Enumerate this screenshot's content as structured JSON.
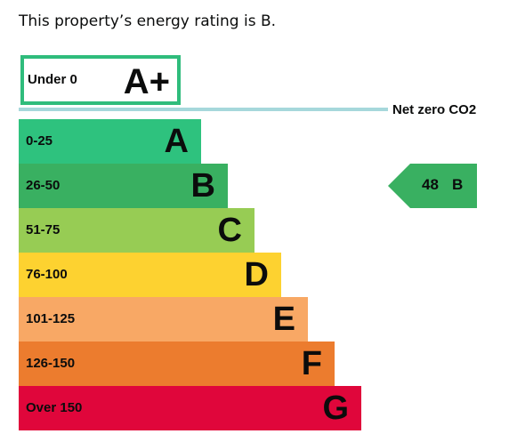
{
  "headline": "This property’s energy rating is B.",
  "top_band": {
    "range": "Under 0",
    "letter": "A+",
    "color": "#2fbc7c"
  },
  "net_zero_label": "Net zero CO2",
  "bands": [
    {
      "range": "0-25",
      "letter": "A",
      "color": "#2ec27e"
    },
    {
      "range": "26-50",
      "letter": "B",
      "color": "#39b061"
    },
    {
      "range": "51-75",
      "letter": "C",
      "color": "#97cc54"
    },
    {
      "range": "76-100",
      "letter": "D",
      "color": "#fdd230"
    },
    {
      "range": "101-125",
      "letter": "E",
      "color": "#f8a865"
    },
    {
      "range": "126-150",
      "letter": "F",
      "color": "#ec7c2e"
    },
    {
      "range": "Over 150",
      "letter": "G",
      "color": "#e0063b"
    }
  ],
  "current_rating": {
    "score": "48",
    "letter": "B",
    "color": "#39b061"
  }
}
